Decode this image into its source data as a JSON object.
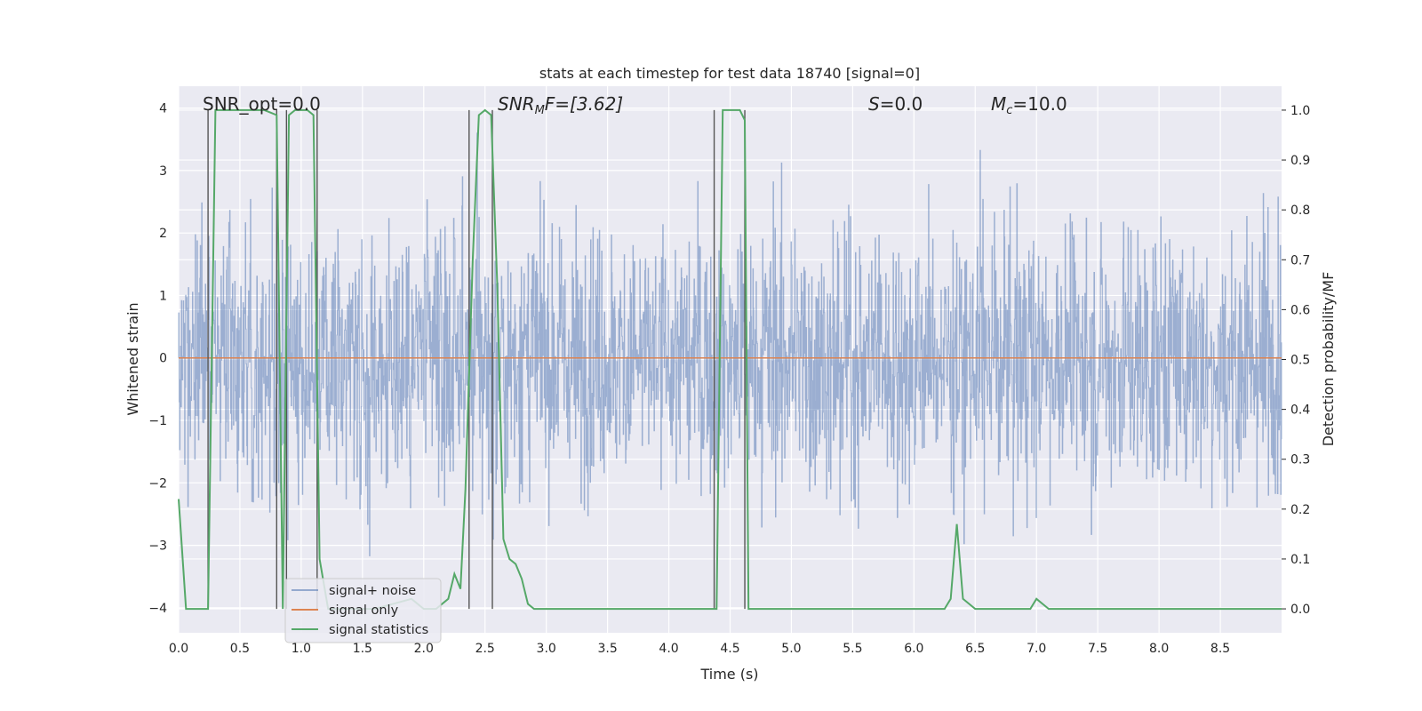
{
  "chart_data": {
    "type": "line",
    "title": "stats at each timestep for test data 18740 [signal=0]",
    "xlabel": "Time (s)",
    "ylabel": "Whitened strain",
    "y2label": "Detection probability/MF",
    "xlim": [
      0.0,
      9.0
    ],
    "ylim": [
      -4.4,
      4.35
    ],
    "y2lim": [
      -0.048,
      1.048
    ],
    "xticks": [
      0.0,
      0.5,
      1.0,
      1.5,
      2.0,
      2.5,
      3.0,
      3.5,
      4.0,
      4.5,
      5.0,
      5.5,
      6.0,
      6.5,
      7.0,
      7.5,
      8.0,
      8.5
    ],
    "xtick_labels": [
      "0.0",
      "0.5",
      "1.0",
      "1.5",
      "2.0",
      "2.5",
      "3.0",
      "3.5",
      "4.0",
      "4.5",
      "5.0",
      "5.5",
      "6.0",
      "6.5",
      "7.0",
      "7.5",
      "8.0",
      "8.5"
    ],
    "yticks": [
      4,
      3,
      2,
      1,
      0,
      -1,
      -2,
      -3,
      -4
    ],
    "ytick_labels": [
      "4",
      "3",
      "2",
      "1",
      "0",
      "−1",
      "−2",
      "−3",
      "−4"
    ],
    "y2ticks": [
      1.0,
      0.9,
      0.8,
      0.7,
      0.6,
      0.5,
      0.4,
      0.3,
      0.2,
      0.1,
      0.0
    ],
    "y2tick_labels": [
      "1.0",
      "0.9",
      "0.8",
      "0.7",
      "0.6",
      "0.5",
      "0.4",
      "0.3",
      "0.2",
      "0.1",
      "0.0"
    ],
    "annotations": {
      "snr_opt": "SNR_opt=0.0",
      "snr_mf_label": "SNR",
      "snr_mf_sub": "M",
      "snr_mf_rest": "F=[3.62]",
      "s_label": "S",
      "s_rest": "=0.0",
      "mc_label": "M",
      "mc_sub": "c",
      "mc_rest": "=10.0"
    },
    "series": [
      {
        "name": "signal+ noise",
        "color": "#4c72b0",
        "description": "dense whitened strain noise, roughly within ±2.5 with spikes to about ±3.5"
      },
      {
        "name": "signal only",
        "color": "#dd8452",
        "y": 0.0
      },
      {
        "name": "signal statistics",
        "color": "#55a868",
        "x": [
          0.0,
          0.06,
          0.12,
          0.18,
          0.24,
          0.3,
          0.4,
          0.55,
          0.7,
          0.8,
          0.85,
          0.9,
          0.95,
          1.05,
          1.1,
          1.15,
          1.22,
          1.28,
          1.4,
          1.6,
          1.9,
          2.0,
          2.1,
          2.2,
          2.25,
          2.3,
          2.34,
          2.4,
          2.45,
          2.5,
          2.55,
          2.6,
          2.65,
          2.7,
          2.75,
          2.8,
          2.85,
          2.9,
          2.95,
          3.0,
          3.5,
          4.0,
          4.39,
          4.44,
          4.5,
          4.58,
          4.62,
          4.65,
          4.7,
          4.8,
          5.0,
          5.1,
          5.5,
          6.0,
          6.25,
          6.3,
          6.35,
          6.4,
          6.5,
          6.9,
          6.95,
          7.0,
          7.05,
          7.1,
          7.2,
          7.5,
          8.0,
          8.5,
          9.0
        ],
        "values": [
          0.22,
          0.0,
          0.0,
          0.0,
          0.0,
          1.0,
          1.0,
          1.0,
          1.0,
          0.99,
          0.0,
          0.99,
          1.0,
          1.0,
          0.99,
          0.1,
          0.0,
          0.0,
          0.0,
          0.0,
          0.02,
          0.0,
          0.0,
          0.02,
          0.07,
          0.04,
          0.24,
          0.7,
          0.99,
          1.0,
          0.99,
          0.65,
          0.14,
          0.1,
          0.09,
          0.06,
          0.01,
          0.0,
          0.0,
          0.0,
          0.0,
          0.0,
          0.0,
          1.0,
          1.0,
          1.0,
          0.98,
          0.0,
          0.0,
          0.0,
          0.0,
          0.0,
          0.0,
          0.0,
          0.0,
          0.02,
          0.17,
          0.02,
          0.0,
          0.0,
          0.0,
          0.02,
          0.01,
          0.0,
          0.0,
          0.0,
          0.0,
          0.0,
          0.0
        ]
      }
    ],
    "vlines_x": [
      0.24,
      0.8,
      0.88,
      1.13,
      2.37,
      2.56,
      4.37,
      4.62
    ]
  },
  "colors": {
    "axes_bg": "#eaeaf2",
    "grid": "#ffffff",
    "noise": "#4c72b0",
    "signal": "#dd8452",
    "stats": "#55a868",
    "vline": "#555555"
  }
}
